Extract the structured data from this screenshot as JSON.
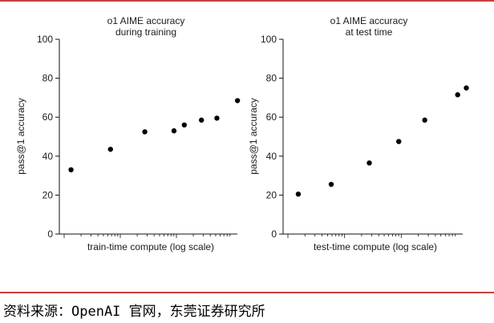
{
  "colors": {
    "rule": "#c8413f",
    "axis": "#111111",
    "point": "#000000",
    "text": "#1a1a1a"
  },
  "chart_data": [
    {
      "type": "scatter",
      "title_lines": [
        "o1 AIME accuracy",
        "during training"
      ],
      "xlabel": "train-time compute (log scale)",
      "ylabel": "pass@1 accuracy",
      "xscale": "log",
      "ylim": [
        0,
        100
      ],
      "yticks": [
        0,
        20,
        40,
        60,
        80,
        100
      ],
      "grid": false,
      "points_note": "x in relative position along log axis (0-1), y in accuracy %",
      "points": [
        {
          "x": 0.04,
          "y": 33
        },
        {
          "x": 0.27,
          "y": 43.5
        },
        {
          "x": 0.47,
          "y": 52.5
        },
        {
          "x": 0.64,
          "y": 53
        },
        {
          "x": 0.7,
          "y": 56
        },
        {
          "x": 0.8,
          "y": 58.5
        },
        {
          "x": 0.89,
          "y": 59.5
        },
        {
          "x": 1.01,
          "y": 68.5
        }
      ]
    },
    {
      "type": "scatter",
      "title_lines": [
        "o1 AIME accuracy",
        "at test time"
      ],
      "xlabel": "test-time compute (log scale)",
      "ylabel": "pass@1 accuracy",
      "xscale": "log",
      "ylim": [
        0,
        100
      ],
      "yticks": [
        0,
        20,
        40,
        60,
        80,
        100
      ],
      "grid": false,
      "points": [
        {
          "x": 0.06,
          "y": 20.5
        },
        {
          "x": 0.25,
          "y": 25.5
        },
        {
          "x": 0.47,
          "y": 36.5
        },
        {
          "x": 0.64,
          "y": 47.5
        },
        {
          "x": 0.79,
          "y": 58.5
        },
        {
          "x": 0.98,
          "y": 71.5
        },
        {
          "x": 1.03,
          "y": 75
        }
      ]
    }
  ],
  "footer": {
    "source": "资料来源：OpenAI 官网，东莞证券研究所"
  }
}
